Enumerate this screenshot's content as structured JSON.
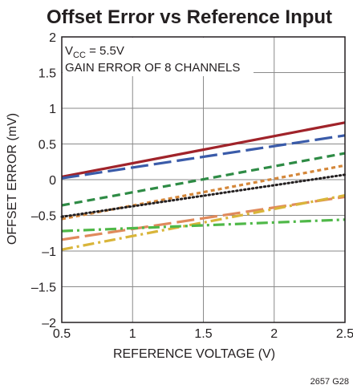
{
  "chart_data": {
    "type": "line",
    "title": "Offset Error vs Reference Input",
    "xlabel": "REFERENCE VOLTAGE (V)",
    "ylabel": "OFFSET ERROR (mV)",
    "xlim": [
      0.5,
      2.5
    ],
    "ylim": [
      -2,
      2
    ],
    "x_ticks": [
      "0.5",
      "1",
      "1.5",
      "2",
      "2.5"
    ],
    "y_ticks": [
      "2",
      "1.5",
      "1",
      "0.5",
      "0",
      "–0.5",
      "–1",
      "–1.5",
      "–2"
    ],
    "grid": true,
    "annotation": {
      "vcc_prefix": "V",
      "vcc_subscript": "CC",
      "vcc_value": " = 5.5V",
      "line2": "GAIN ERROR OF 8 CHANNELS"
    },
    "series": [
      {
        "color": "#a0232a",
        "dash": "solid",
        "x": [
          0.5,
          2.5
        ],
        "y": [
          0.04,
          0.8
        ]
      },
      {
        "color": "#3a5ba9",
        "dash": "long-dash",
        "x": [
          0.5,
          2.5
        ],
        "y": [
          0.02,
          0.62
        ]
      },
      {
        "color": "#2e8b45",
        "dash": "dash",
        "x": [
          0.5,
          2.5
        ],
        "y": [
          -0.36,
          0.37
        ]
      },
      {
        "color": "#d4873a",
        "dash": "short-dash",
        "x": [
          0.5,
          2.5
        ],
        "y": [
          -0.55,
          0.2
        ]
      },
      {
        "color": "#231f20",
        "dash": "dot",
        "x": [
          0.5,
          2.5
        ],
        "y": [
          -0.52,
          0.07
        ]
      },
      {
        "color": "#e08a5c",
        "dash": "long-dash",
        "x": [
          0.5,
          2.5
        ],
        "y": [
          -0.84,
          -0.24
        ]
      },
      {
        "color": "#d9b53a",
        "dash": "dash-dot",
        "x": [
          0.5,
          2.5
        ],
        "y": [
          -0.98,
          -0.22
        ]
      },
      {
        "color": "#4fb848",
        "dash": "dash-dot",
        "x": [
          0.5,
          2.5
        ],
        "y": [
          -0.72,
          -0.56
        ]
      }
    ]
  },
  "figure_code": "2657 G28"
}
